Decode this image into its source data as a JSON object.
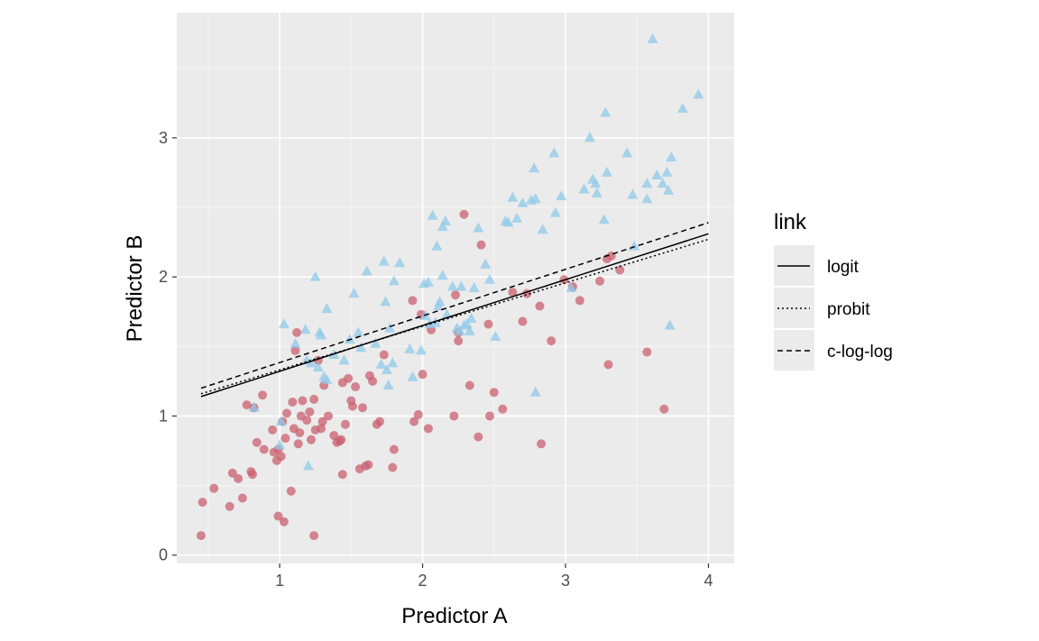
{
  "chart_data": {
    "type": "scatter",
    "title": "",
    "xlabel": "Predictor A",
    "ylabel": "Predictor B",
    "xlim": [
      0.28,
      4.18
    ],
    "ylim": [
      -0.06,
      3.9
    ],
    "x_ticks": [
      1,
      2,
      3,
      4
    ],
    "y_ticks": [
      0,
      1,
      2,
      3
    ],
    "grid": true,
    "colors": {
      "panel": "#ebebeb",
      "grid_major": "#ffffff",
      "class_a_points": "#c9606f",
      "class_b_points": "#8fc9ea",
      "lines": "#000000"
    },
    "point_series": [
      {
        "marker": "circle",
        "color": "#c9606f",
        "points": [
          [
            0.45,
            0.14
          ],
          [
            0.46,
            0.38
          ],
          [
            0.54,
            0.48
          ],
          [
            0.65,
            0.35
          ],
          [
            0.67,
            0.59
          ],
          [
            0.71,
            0.55
          ],
          [
            0.74,
            0.41
          ],
          [
            0.77,
            1.08
          ],
          [
            0.8,
            0.6
          ],
          [
            0.81,
            0.58
          ],
          [
            0.82,
            1.06
          ],
          [
            0.84,
            0.81
          ],
          [
            0.88,
            1.15
          ],
          [
            0.89,
            0.76
          ],
          [
            0.95,
            0.9
          ],
          [
            0.96,
            0.74
          ],
          [
            0.98,
            0.68
          ],
          [
            0.99,
            0.76
          ],
          [
            0.99,
            0.28
          ],
          [
            1.01,
            0.71
          ],
          [
            1.02,
            0.96
          ],
          [
            1.03,
            0.24
          ],
          [
            1.04,
            0.84
          ],
          [
            1.05,
            1.02
          ],
          [
            1.08,
            0.46
          ],
          [
            1.09,
            1.1
          ],
          [
            1.1,
            0.91
          ],
          [
            1.11,
            1.47
          ],
          [
            1.12,
            1.6
          ],
          [
            1.13,
            0.8
          ],
          [
            1.14,
            0.88
          ],
          [
            1.15,
            1.0
          ],
          [
            1.16,
            1.11
          ],
          [
            1.19,
            0.97
          ],
          [
            1.21,
            1.03
          ],
          [
            1.22,
            0.83
          ],
          [
            1.24,
            0.14
          ],
          [
            1.24,
            1.12
          ],
          [
            1.25,
            0.9
          ],
          [
            1.27,
            1.4
          ],
          [
            1.29,
            0.91
          ],
          [
            1.3,
            0.96
          ],
          [
            1.31,
            1.22
          ],
          [
            1.34,
            1.0
          ],
          [
            1.38,
            0.86
          ],
          [
            1.4,
            0.81
          ],
          [
            1.42,
            0.82
          ],
          [
            1.43,
            0.83
          ],
          [
            1.44,
            1.24
          ],
          [
            1.44,
            0.58
          ],
          [
            1.46,
            0.94
          ],
          [
            1.48,
            1.27
          ],
          [
            1.5,
            1.11
          ],
          [
            1.51,
            1.07
          ],
          [
            1.53,
            1.21
          ],
          [
            1.56,
            0.62
          ],
          [
            1.58,
            1.06
          ],
          [
            1.6,
            0.64
          ],
          [
            1.62,
            0.65
          ],
          [
            1.63,
            1.29
          ],
          [
            1.65,
            1.25
          ],
          [
            1.68,
            0.94
          ],
          [
            1.7,
            0.96
          ],
          [
            1.73,
            1.44
          ],
          [
            1.79,
            0.63
          ],
          [
            1.8,
            0.76
          ],
          [
            1.93,
            1.83
          ],
          [
            1.94,
            0.96
          ],
          [
            1.97,
            1.01
          ],
          [
            1.99,
            1.73
          ],
          [
            2.0,
            1.3
          ],
          [
            2.04,
            0.91
          ],
          [
            2.06,
            1.62
          ],
          [
            2.22,
            1.0
          ],
          [
            2.23,
            1.87
          ],
          [
            2.25,
            1.54
          ],
          [
            2.25,
            1.6
          ],
          [
            2.29,
            2.45
          ],
          [
            2.33,
            1.22
          ],
          [
            2.39,
            0.85
          ],
          [
            2.41,
            2.23
          ],
          [
            2.46,
            1.66
          ],
          [
            2.47,
            1.0
          ],
          [
            2.5,
            1.17
          ],
          [
            2.56,
            1.05
          ],
          [
            2.63,
            1.89
          ],
          [
            2.7,
            1.68
          ],
          [
            2.73,
            1.88
          ],
          [
            2.82,
            1.79
          ],
          [
            2.83,
            0.8
          ],
          [
            2.9,
            1.54
          ],
          [
            2.99,
            1.98
          ],
          [
            3.05,
            1.93
          ],
          [
            3.1,
            1.83
          ],
          [
            3.24,
            1.97
          ],
          [
            3.29,
            2.13
          ],
          [
            3.3,
            1.37
          ],
          [
            3.32,
            2.15
          ],
          [
            3.38,
            2.05
          ],
          [
            3.57,
            1.46
          ],
          [
            3.69,
            1.05
          ]
        ]
      },
      {
        "marker": "triangle",
        "color": "#8fc9ea",
        "points": [
          [
            0.82,
            1.06
          ],
          [
            1.0,
            0.79
          ],
          [
            1.01,
            0.96
          ],
          [
            1.03,
            1.66
          ],
          [
            1.11,
            1.52
          ],
          [
            1.18,
            1.62
          ],
          [
            1.19,
            1.4
          ],
          [
            1.2,
            0.64
          ],
          [
            1.22,
            1.38
          ],
          [
            1.25,
            2.0
          ],
          [
            1.27,
            1.35
          ],
          [
            1.28,
            1.6
          ],
          [
            1.29,
            1.58
          ],
          [
            1.31,
            1.28
          ],
          [
            1.33,
            1.77
          ],
          [
            1.33,
            1.26
          ],
          [
            1.38,
            1.44
          ],
          [
            1.45,
            1.4
          ],
          [
            1.49,
            1.55
          ],
          [
            1.52,
            1.88
          ],
          [
            1.55,
            1.6
          ],
          [
            1.57,
            1.49
          ],
          [
            1.61,
            2.04
          ],
          [
            1.67,
            1.52
          ],
          [
            1.71,
            1.37
          ],
          [
            1.73,
            2.11
          ],
          [
            1.74,
            1.82
          ],
          [
            1.75,
            1.33
          ],
          [
            1.76,
            1.22
          ],
          [
            1.77,
            1.63
          ],
          [
            1.79,
            1.38
          ],
          [
            1.8,
            1.97
          ],
          [
            1.84,
            2.1
          ],
          [
            1.91,
            1.48
          ],
          [
            1.93,
            1.28
          ],
          [
            1.99,
            1.47
          ],
          [
            2.01,
            1.95
          ],
          [
            2.02,
            1.72
          ],
          [
            2.04,
            1.96
          ],
          [
            2.05,
            1.66
          ],
          [
            2.07,
            2.44
          ],
          [
            2.09,
            1.67
          ],
          [
            2.1,
            2.22
          ],
          [
            2.11,
            1.79
          ],
          [
            2.12,
            1.82
          ],
          [
            2.14,
            2.36
          ],
          [
            2.14,
            2.01
          ],
          [
            2.16,
            2.4
          ],
          [
            2.17,
            1.73
          ],
          [
            2.21,
            1.93
          ],
          [
            2.24,
            1.63
          ],
          [
            2.26,
            1.61
          ],
          [
            2.27,
            1.93
          ],
          [
            2.29,
            1.65
          ],
          [
            2.31,
            1.66
          ],
          [
            2.33,
            1.61
          ],
          [
            2.34,
            1.7
          ],
          [
            2.36,
            1.92
          ],
          [
            2.39,
            2.35
          ],
          [
            2.44,
            2.09
          ],
          [
            2.47,
            1.98
          ],
          [
            2.51,
            1.57
          ],
          [
            2.58,
            2.4
          ],
          [
            2.6,
            2.39
          ],
          [
            2.63,
            2.57
          ],
          [
            2.66,
            2.42
          ],
          [
            2.7,
            2.53
          ],
          [
            2.76,
            2.55
          ],
          [
            2.78,
            2.78
          ],
          [
            2.79,
            2.56
          ],
          [
            2.79,
            1.17
          ],
          [
            2.84,
            2.34
          ],
          [
            2.92,
            2.89
          ],
          [
            2.93,
            2.46
          ],
          [
            2.97,
            2.58
          ],
          [
            3.04,
            1.92
          ],
          [
            3.13,
            2.63
          ],
          [
            3.17,
            3.0
          ],
          [
            3.19,
            2.7
          ],
          [
            3.21,
            2.67
          ],
          [
            3.22,
            2.6
          ],
          [
            3.27,
            2.41
          ],
          [
            3.28,
            3.18
          ],
          [
            3.29,
            2.75
          ],
          [
            3.43,
            2.89
          ],
          [
            3.47,
            2.59
          ],
          [
            3.48,
            2.22
          ],
          [
            3.57,
            2.56
          ],
          [
            3.57,
            2.67
          ],
          [
            3.64,
            2.73
          ],
          [
            3.68,
            2.67
          ],
          [
            3.71,
            2.75
          ],
          [
            3.72,
            2.62
          ],
          [
            3.73,
            1.65
          ],
          [
            3.74,
            2.86
          ],
          [
            3.61,
            3.71
          ],
          [
            3.82,
            3.21
          ],
          [
            3.93,
            3.31
          ]
        ]
      }
    ],
    "series": [
      {
        "name": "logit",
        "dash": "solid",
        "x": [
          0.45,
          4.0
        ],
        "y": [
          1.14,
          2.31
        ]
      },
      {
        "name": "probit",
        "dash": "dotted",
        "x": [
          0.45,
          4.0
        ],
        "y": [
          1.16,
          2.27
        ]
      },
      {
        "name": "c-log-log",
        "dash": "dashed",
        "x": [
          0.45,
          4.0
        ],
        "y": [
          1.2,
          2.39
        ]
      }
    ],
    "legend": {
      "title": "link",
      "position": "right",
      "entries": [
        "logit",
        "probit",
        "c-log-log"
      ]
    }
  }
}
